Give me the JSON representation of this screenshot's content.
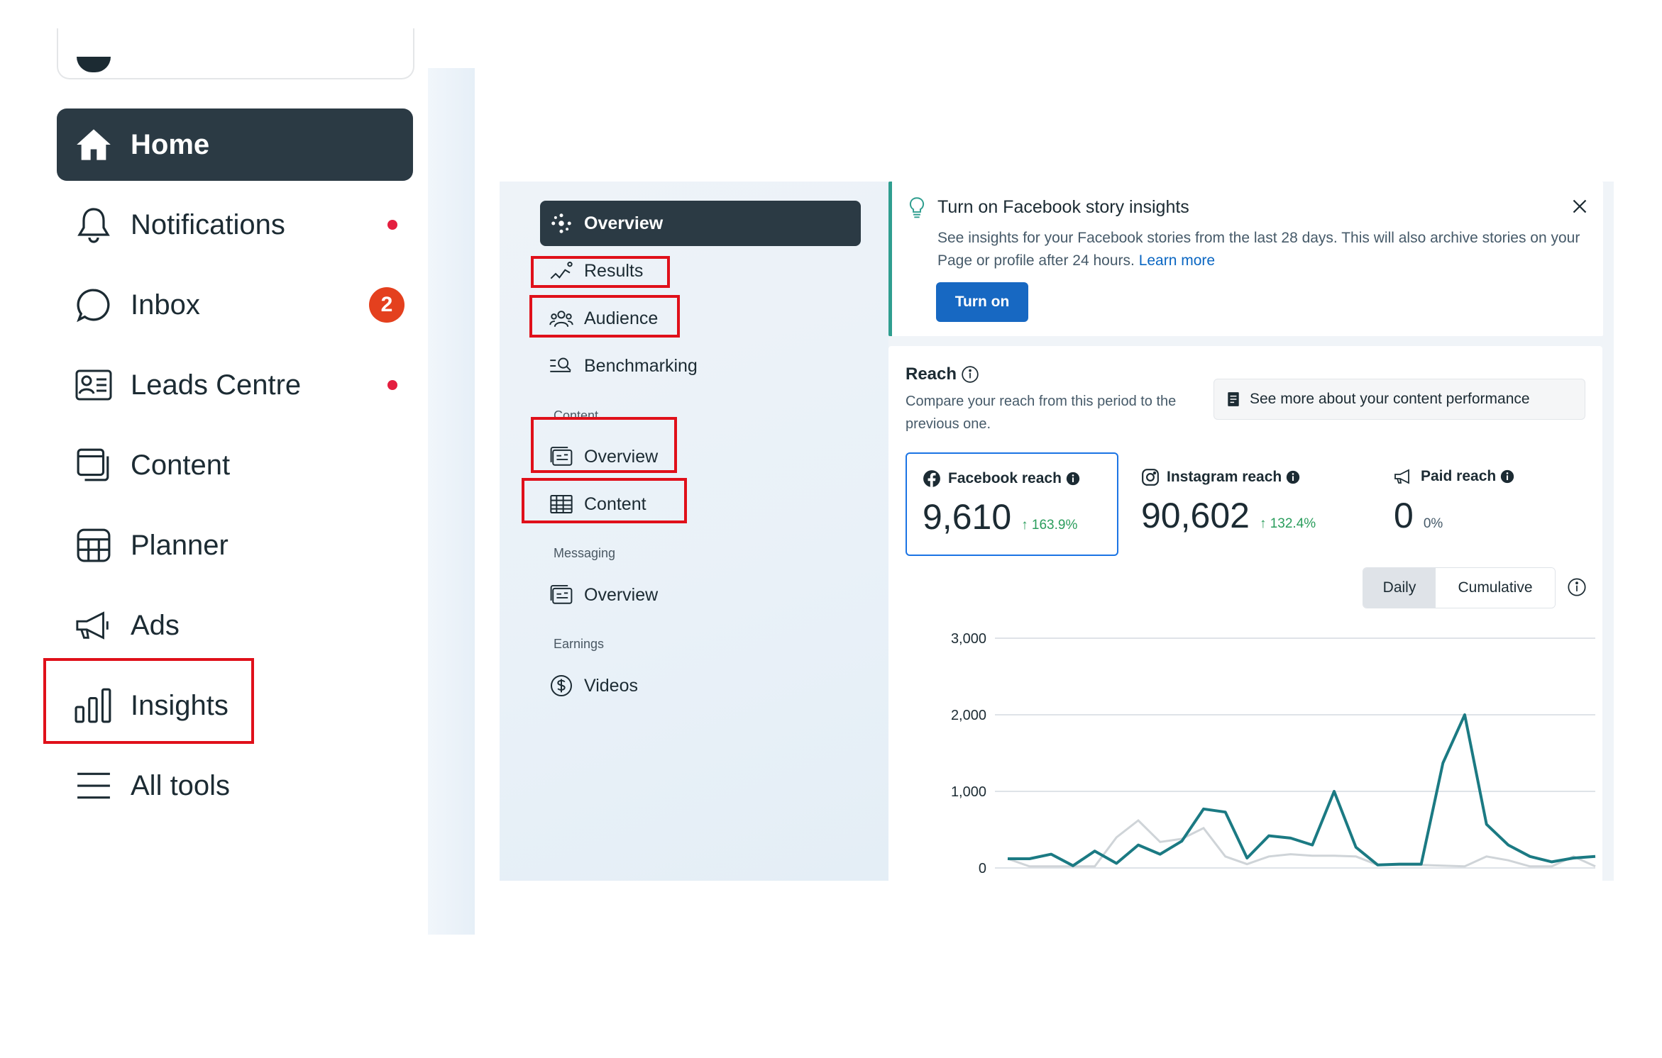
{
  "sidebar": {
    "items": [
      {
        "label": "Home",
        "icon": "home-icon",
        "active": true
      },
      {
        "label": "Notifications",
        "icon": "bell-icon",
        "indicator": "dot"
      },
      {
        "label": "Inbox",
        "icon": "chat-bubble-icon",
        "badge": "2"
      },
      {
        "label": "Leads Centre",
        "icon": "contact-card-icon",
        "indicator": "dot"
      },
      {
        "label": "Content",
        "icon": "content-pages-icon"
      },
      {
        "label": "Planner",
        "icon": "calendar-grid-icon"
      },
      {
        "label": "Ads",
        "icon": "megaphone-icon"
      },
      {
        "label": "Insights",
        "icon": "bar-chart-icon"
      },
      {
        "label": "All tools",
        "icon": "menu-lines-icon"
      }
    ]
  },
  "insights_nav": {
    "items": [
      {
        "label": "Overview",
        "icon": "sparkle-icon",
        "active": true
      },
      {
        "label": "Results",
        "icon": "trend-icon"
      },
      {
        "label": "Audience",
        "icon": "people-icon"
      },
      {
        "label": "Benchmarking",
        "icon": "benchmark-search-icon"
      }
    ],
    "content_section": "Content",
    "content_items": [
      {
        "label": "Overview",
        "icon": "media-icon"
      },
      {
        "label": "Content",
        "icon": "table-icon"
      }
    ],
    "messaging_section": "Messaging",
    "messaging_items": [
      {
        "label": "Overview",
        "icon": "media-icon"
      }
    ],
    "earnings_section": "Earnings",
    "earnings_items": [
      {
        "label": "Videos",
        "icon": "dollar-icon"
      }
    ]
  },
  "banner": {
    "title": "Turn on Facebook story insights",
    "text": "See insights for your Facebook stories from the last 28 days. This will also archive stories on your Page or profile after 24 hours.",
    "link": "Learn more",
    "button": "Turn on"
  },
  "reach": {
    "title": "Reach",
    "subtitle": "Compare your reach from this period to the previous one.",
    "see_more": "See more about your content performance",
    "metrics": [
      {
        "label": "Facebook reach",
        "value": "9,610",
        "change": "163.9%",
        "selected": true
      },
      {
        "label": "Instagram reach",
        "value": "90,602",
        "change": "132.4%"
      },
      {
        "label": "Paid reach",
        "value": "0",
        "change": "0%"
      }
    ],
    "toggle": {
      "daily": "Daily",
      "cumulative": "Cumulative",
      "selected": "Daily"
    }
  },
  "chart_data": {
    "type": "line",
    "title": "",
    "xlabel": "",
    "ylabel": "",
    "ylim": [
      0,
      3000
    ],
    "yticks": [
      "3,000",
      "2,000",
      "1,000",
      "0"
    ],
    "grid": true,
    "colors": {
      "current": "#1b7a83",
      "previous": "#cfd4d8"
    },
    "series": [
      {
        "values": [
          120,
          120,
          180,
          30,
          220,
          60,
          300,
          180,
          350,
          770,
          730,
          130,
          420,
          390,
          300,
          1000,
          270,
          40,
          50,
          50,
          1370,
          2000,
          570,
          300,
          150,
          80,
          130,
          150
        ]
      },
      {
        "values": [
          120,
          20,
          20,
          20,
          20,
          400,
          620,
          340,
          380,
          520,
          150,
          50,
          150,
          180,
          160,
          160,
          150,
          40,
          40,
          40,
          30,
          20,
          150,
          100,
          20,
          20,
          150,
          20
        ]
      }
    ]
  }
}
